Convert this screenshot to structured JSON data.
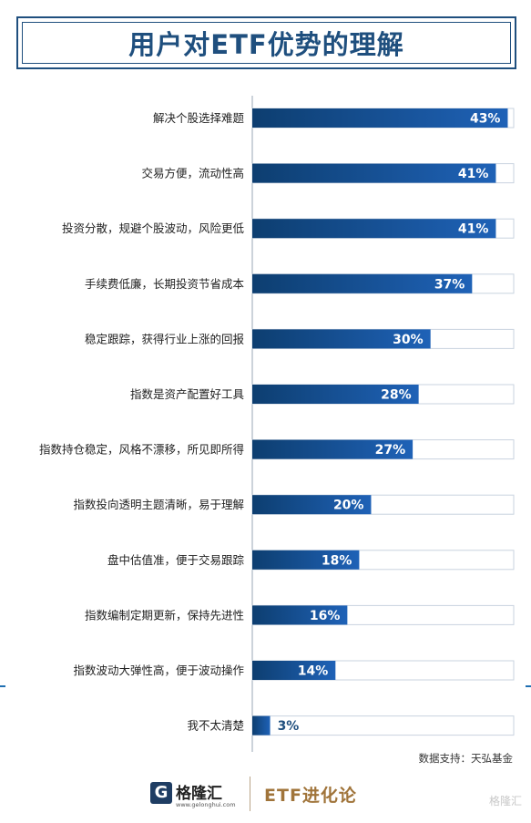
{
  "title": "用户对ETF优势的理解",
  "source_label": "数据支持：天弘基金",
  "footer": {
    "logo_name": "格隆汇",
    "logo_url": "www.gelonghui.com",
    "brand": "ETF进化论",
    "watermark": "格隆汇"
  },
  "colors": {
    "bar_gradient_start": "#1f62b7",
    "bar_gradient_end": "#0d3e70",
    "track": "#ffffff",
    "track_border": "#c9d3df",
    "title": "#1f4f7e",
    "value_label_inside": "#ffffff",
    "value_label_outside": "#1f4f7e"
  },
  "chart_data": {
    "type": "bar",
    "orientation": "horizontal",
    "title": "用户对ETF优势的理解",
    "categories": [
      "解决个股选择难题",
      "交易方便，流动性高",
      "投资分散，规避个股波动，风险更低",
      "手续费低廉，长期投资节省成本",
      "稳定跟踪，获得行业上涨的回报",
      "指数是资产配置好工具",
      "指数持仓稳定，风格不漂移，所见即所得",
      "指数投向透明主题清晰，易于理解",
      "盘中估值准，便于交易跟踪",
      "指数编制定期更新，保持先进性",
      "指数波动大弹性高，便于波动操作",
      "我不太清楚"
    ],
    "values": [
      43,
      41,
      41,
      37,
      30,
      28,
      27,
      20,
      18,
      16,
      14,
      3
    ],
    "value_labels": [
      "43%",
      "41%",
      "41%",
      "37%",
      "30%",
      "28%",
      "27%",
      "20%",
      "18%",
      "16%",
      "14%",
      "3%"
    ],
    "unit": "%",
    "xlim": [
      0,
      44
    ],
    "grid": false,
    "legend": "none"
  }
}
